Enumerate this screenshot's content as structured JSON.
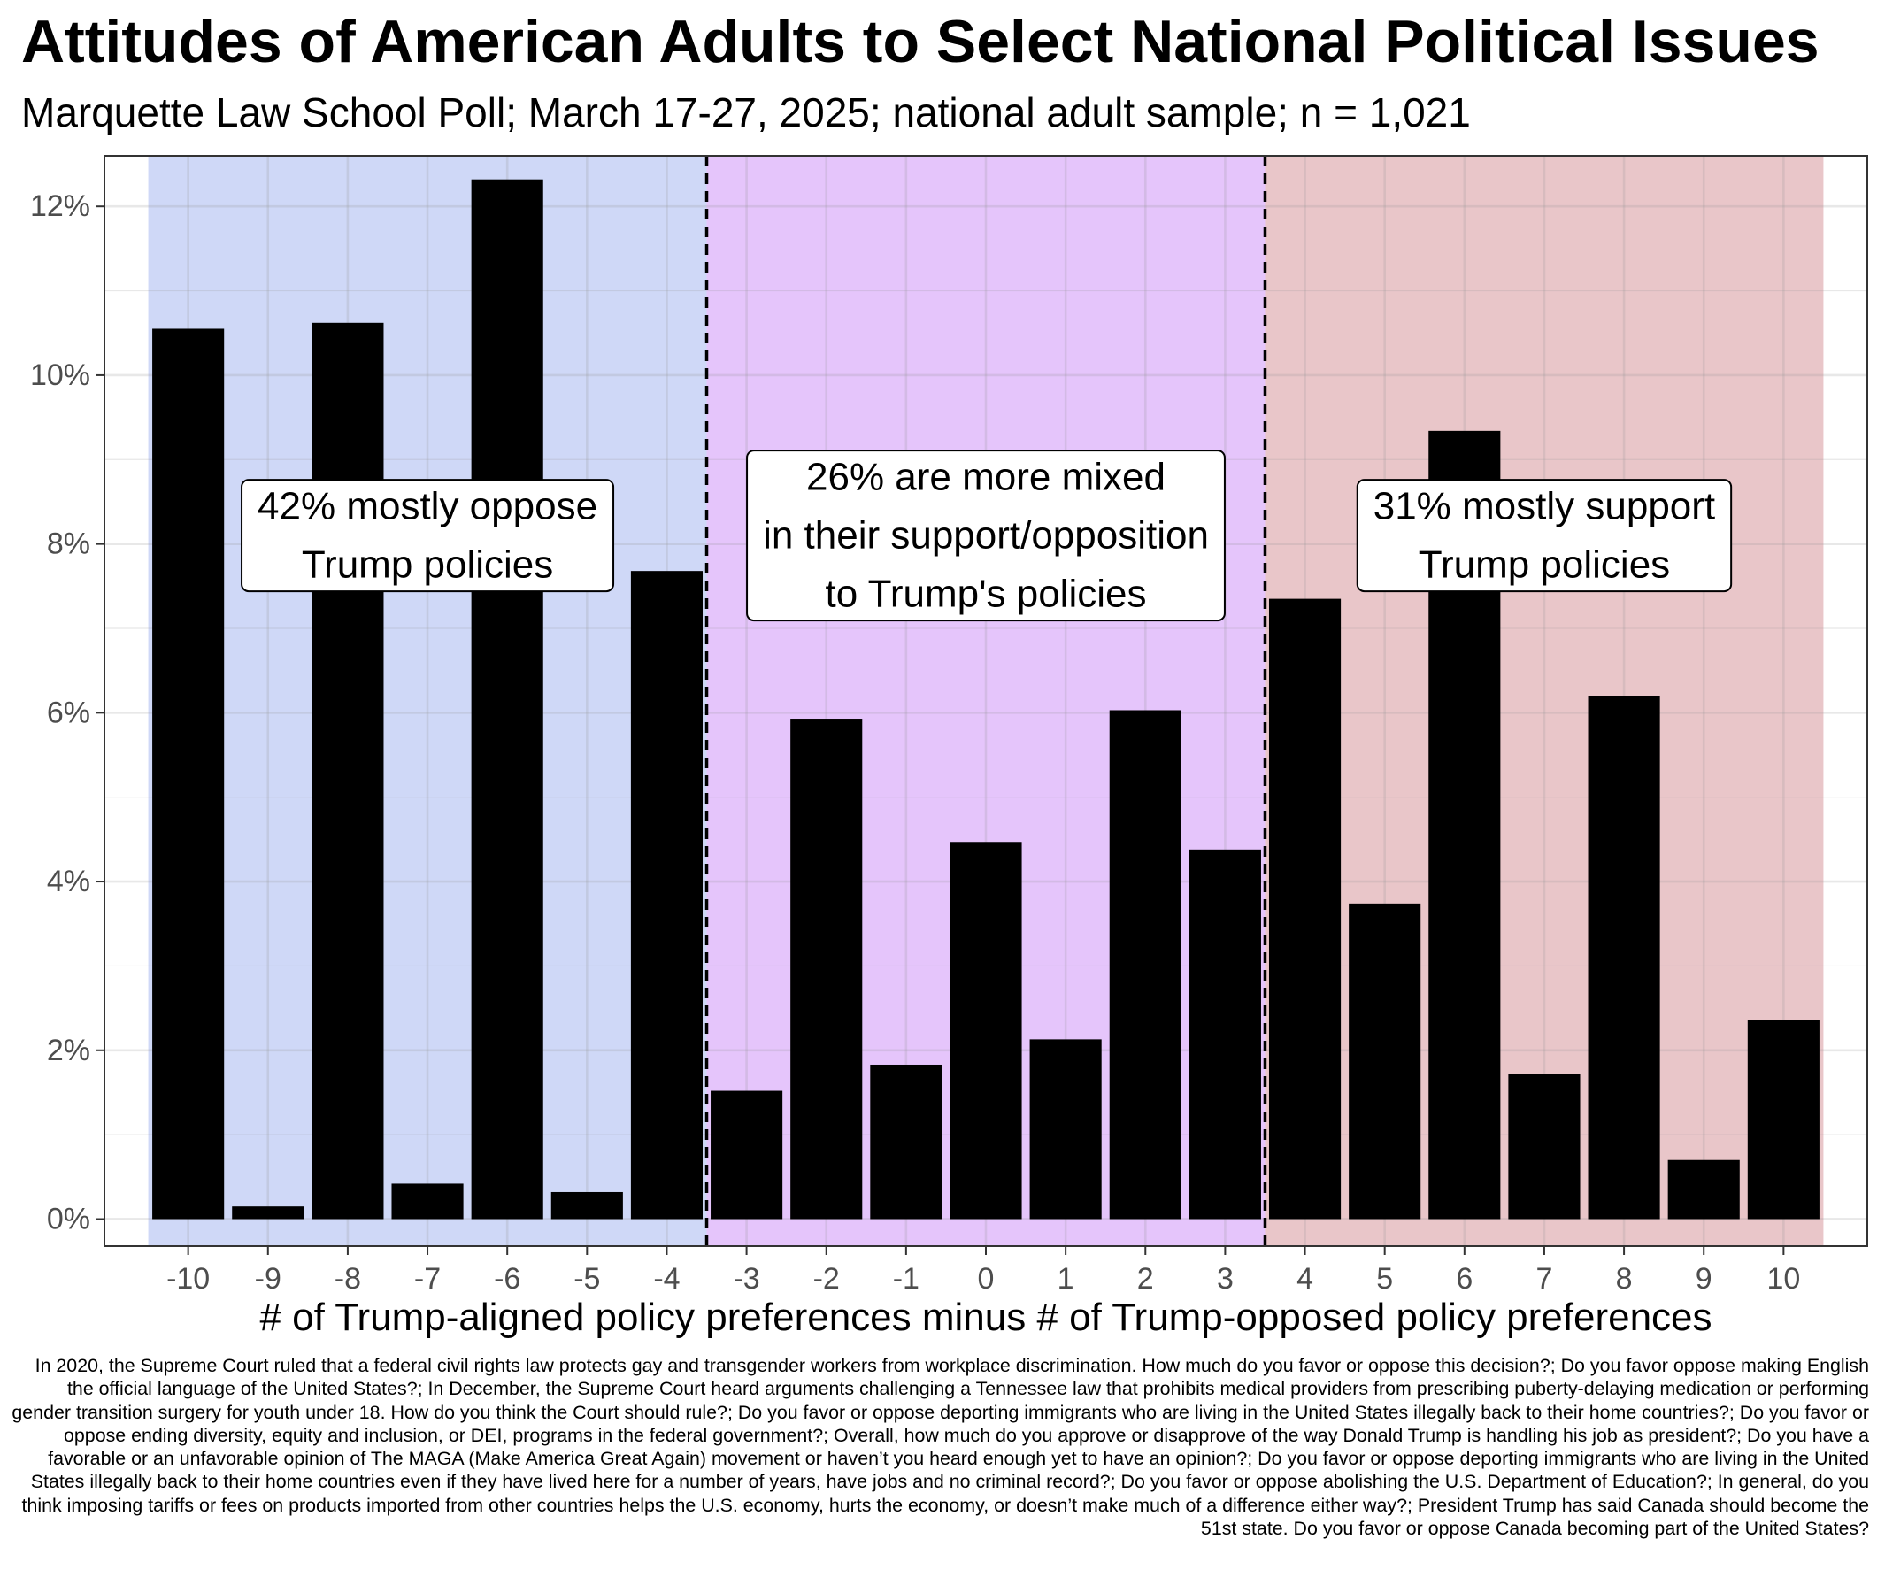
{
  "chart_data": {
    "type": "bar",
    "title": "Attitudes of American Adults to Select National Political Issues",
    "subtitle": "Marquette Law School Poll; March 17-27, 2025; national adult sample; n = 1,021",
    "xlabel": "# of Trump-aligned policy preferences minus # of Trump-opposed policy preferences",
    "ylabel": "",
    "x": [
      -10,
      -9,
      -8,
      -7,
      -6,
      -5,
      -4,
      -3,
      -2,
      -1,
      0,
      1,
      2,
      3,
      4,
      5,
      6,
      7,
      8,
      9,
      10
    ],
    "tick_labels": [
      "-10",
      "-9",
      "-8",
      "-7",
      "-6",
      "-5",
      "-4",
      "-3",
      "-2",
      "-1",
      "0",
      "1",
      "2",
      "3",
      "4",
      "5",
      "6",
      "7",
      "8",
      "9",
      "10"
    ],
    "values": [
      10.55,
      0.15,
      10.62,
      0.42,
      12.32,
      0.32,
      7.68,
      1.52,
      5.93,
      1.83,
      4.47,
      2.13,
      6.03,
      4.38,
      7.35,
      3.74,
      9.34,
      1.72,
      6.2,
      0.7,
      2.36
    ],
    "ylim": [
      0,
      12.5
    ],
    "yticks": [
      0,
      2,
      4,
      6,
      8,
      10,
      12
    ],
    "ytick_labels": [
      "0%",
      "2%",
      "4%",
      "6%",
      "8%",
      "10%",
      "12%"
    ],
    "regions": [
      {
        "from": -10.5,
        "to": -3.5,
        "color": "#cfd8f7"
      },
      {
        "from": -3.5,
        "to": 3.5,
        "color": "#e5c5fb"
      },
      {
        "from": 3.5,
        "to": 10.5,
        "color": "#e9c6c9"
      }
    ],
    "dividers": [
      -3.5,
      3.5
    ],
    "annotations": [
      {
        "lines": [
          "42% mostly oppose",
          "Trump policies"
        ],
        "x": -7,
        "y": 8.1
      },
      {
        "lines": [
          "26% are more mixed",
          "in their support/opposition",
          "to Trump's policies"
        ],
        "x": 0,
        "y": 8.1
      },
      {
        "lines": [
          "31% mostly support",
          "Trump policies"
        ],
        "x": 7,
        "y": 8.1
      }
    ],
    "bar_color": "#000000",
    "grid": true
  },
  "caption": "In 2020, the Supreme Court ruled that a federal civil rights law protects gay and transgender workers from workplace discrimination. How much do you favor or oppose this decision?; Do you favor oppose making English the official language of the United States?; In December, the Supreme Court heard arguments challenging a Tennessee law that prohibits medical providers from prescribing puberty-delaying medication or performing gender transition surgery for youth under 18. How do you think the Court should rule?; Do you favor or oppose deporting immigrants who are living in the United States illegally back to their home countries?; Do you favor or oppose ending diversity, equity and inclusion, or DEI, programs in the federal government?; Overall, how much do you approve or disapprove of the way Donald Trump is handling his job as president?; Do you have a favorable or an unfavorable opinion of The MAGA (Make America Great Again) movement or haven’t you heard enough yet to have an opinion?; Do you favor or oppose deporting immigrants who are living in the United States illegally back to their home countries even if they have lived here for a number of years, have jobs and no criminal record?; Do you favor or oppose abolishing the U.S. Department of Education?; In general, do you think imposing tariffs or fees on products imported from other countries helps the U.S. economy, hurts the economy, or doesn’t make much of a difference either way?; President Trump has said Canada should become the 51st state. Do you favor or oppose Canada becoming part of the United States?"
}
